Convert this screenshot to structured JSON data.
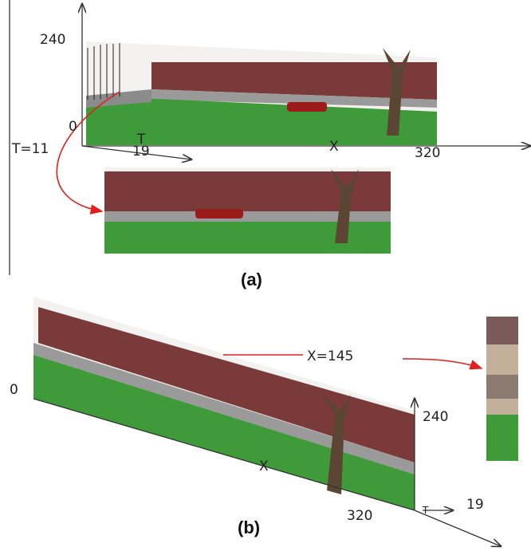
{
  "panel_a": {
    "y_max": "240",
    "y_min": "0",
    "t_label": "T=11",
    "t_axis": "T",
    "t_max": "19",
    "x_axis": "X",
    "x_max": "320",
    "caption": "(a)"
  },
  "panel_b": {
    "origin": "0",
    "slice_label": "X=145",
    "x_axis": "X",
    "y_max": "240",
    "x_max": "320",
    "t_axis": "T",
    "t_max": "19",
    "caption": "(b)"
  }
}
